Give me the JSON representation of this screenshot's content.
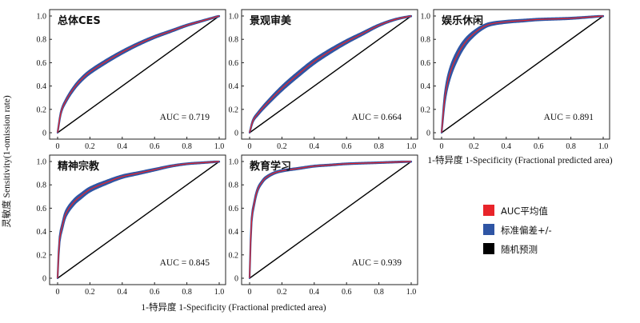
{
  "figure": {
    "xlabel": "1-特异度 1-Specificity (Fractional predicted area)",
    "ylabel": "灵敏度 Sensitivity(1-omission rate)"
  },
  "legend": {
    "items": [
      {
        "label": "AUC平均值",
        "color": "#e8242a"
      },
      {
        "label": "标准偏差+/-",
        "color": "#2f55a4"
      },
      {
        "label": "随机预测",
        "color": "#000000"
      }
    ],
    "placement": "bottom-right"
  },
  "chart_data": [
    {
      "type": "line",
      "title": "总体CES",
      "auc_label": "AUC = 0.719",
      "xlim": [
        0,
        1
      ],
      "ylim": [
        0,
        1
      ],
      "ticks": [
        "0",
        "0.2",
        "0.4",
        "0.6",
        "0.8",
        "1.0"
      ],
      "series": [
        {
          "name": "AUC平均值",
          "x": [
            0,
            0.02,
            0.05,
            0.1,
            0.15,
            0.2,
            0.3,
            0.4,
            0.5,
            0.6,
            0.7,
            0.8,
            0.9,
            1.0
          ],
          "y": [
            0,
            0.17,
            0.27,
            0.38,
            0.46,
            0.52,
            0.61,
            0.69,
            0.76,
            0.82,
            0.87,
            0.92,
            0.96,
            1.0
          ],
          "band": 0.012
        },
        {
          "name": "随机预测",
          "x": [
            0,
            1
          ],
          "y": [
            0,
            1
          ]
        }
      ]
    },
    {
      "type": "line",
      "title": "景观审美",
      "auc_label": "AUC = 0.664",
      "xlim": [
        0,
        1
      ],
      "ylim": [
        0,
        1
      ],
      "ticks": [
        "0",
        "0.2",
        "0.4",
        "0.6",
        "0.8",
        "1.0"
      ],
      "series": [
        {
          "name": "AUC平均值",
          "x": [
            0,
            0.02,
            0.05,
            0.1,
            0.2,
            0.3,
            0.4,
            0.5,
            0.6,
            0.7,
            0.8,
            0.9,
            1.0
          ],
          "y": [
            0,
            0.1,
            0.16,
            0.24,
            0.38,
            0.5,
            0.61,
            0.7,
            0.78,
            0.85,
            0.92,
            0.97,
            1.0
          ],
          "band": 0.018
        },
        {
          "name": "随机预测",
          "x": [
            0,
            1
          ],
          "y": [
            0,
            1
          ]
        }
      ]
    },
    {
      "type": "line",
      "title": "娱乐休闲",
      "auc_label": "AUC = 0.891",
      "xlim": [
        0,
        1
      ],
      "ylim": [
        0,
        1
      ],
      "ticks": [
        "0",
        "0.2",
        "0.4",
        "0.6",
        "0.8",
        "1.0"
      ],
      "series": [
        {
          "name": "AUC平均值",
          "x": [
            0,
            0.02,
            0.05,
            0.1,
            0.15,
            0.2,
            0.25,
            0.3,
            0.4,
            0.5,
            0.6,
            0.8,
            1.0
          ],
          "y": [
            0,
            0.3,
            0.5,
            0.67,
            0.78,
            0.85,
            0.9,
            0.93,
            0.95,
            0.96,
            0.97,
            0.98,
            1.0
          ],
          "band": 0.04
        },
        {
          "name": "随机预测",
          "x": [
            0,
            1
          ],
          "y": [
            0,
            1
          ]
        }
      ]
    },
    {
      "type": "line",
      "title": "精神宗教",
      "auc_label": "AUC = 0.845",
      "xlim": [
        0,
        1
      ],
      "ylim": [
        0,
        1
      ],
      "ticks": [
        "0",
        "0.2",
        "0.4",
        "0.6",
        "0.8",
        "1.0"
      ],
      "series": [
        {
          "name": "AUC平均值",
          "x": [
            0,
            0.01,
            0.03,
            0.05,
            0.1,
            0.15,
            0.2,
            0.3,
            0.4,
            0.5,
            0.6,
            0.7,
            0.8,
            0.9,
            1.0
          ],
          "y": [
            0,
            0.3,
            0.45,
            0.55,
            0.65,
            0.71,
            0.76,
            0.82,
            0.87,
            0.9,
            0.93,
            0.96,
            0.98,
            0.99,
            1.0
          ],
          "band": 0.022
        },
        {
          "name": "随机预测",
          "x": [
            0,
            1
          ],
          "y": [
            0,
            1
          ]
        }
      ]
    },
    {
      "type": "line",
      "title": "教育学习",
      "auc_label": "AUC = 0.939",
      "xlim": [
        0,
        1
      ],
      "ylim": [
        0,
        1
      ],
      "ticks": [
        "0",
        "0.2",
        "0.4",
        "0.6",
        "0.8",
        "1.0"
      ],
      "series": [
        {
          "name": "AUC平均值",
          "x": [
            0,
            0.01,
            0.03,
            0.05,
            0.08,
            0.1,
            0.15,
            0.2,
            0.3,
            0.4,
            0.5,
            0.6,
            0.8,
            1.0
          ],
          "y": [
            0,
            0.45,
            0.65,
            0.76,
            0.83,
            0.86,
            0.9,
            0.92,
            0.94,
            0.96,
            0.97,
            0.98,
            0.99,
            1.0
          ],
          "band": 0.014
        },
        {
          "name": "随机预测",
          "x": [
            0,
            1
          ],
          "y": [
            0,
            1
          ]
        }
      ]
    }
  ]
}
